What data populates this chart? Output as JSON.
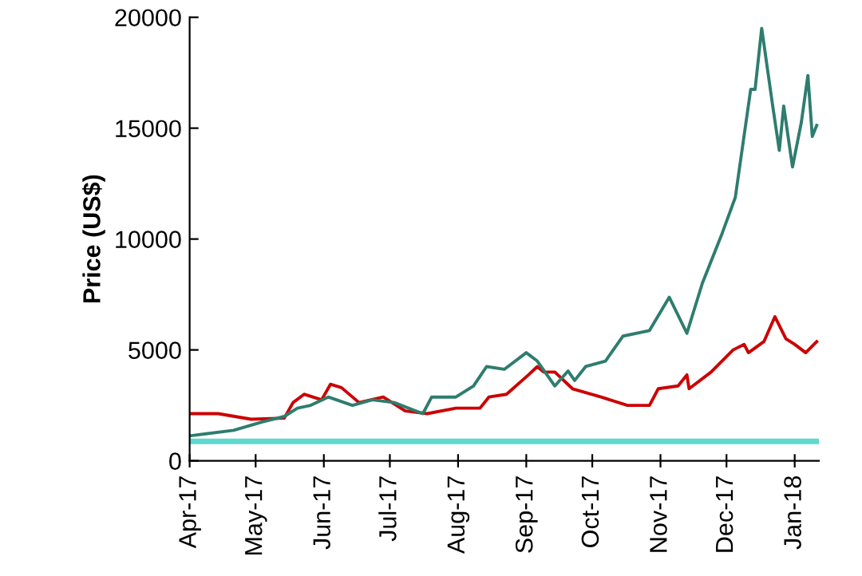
{
  "chart_data": {
    "type": "line",
    "ylabel": "Price (US$)",
    "xlim": [
      "2017-04-01",
      "2018-01-12"
    ],
    "ylim": [
      0,
      20000
    ],
    "yticks": [
      0,
      5000,
      10000,
      15000,
      20000
    ],
    "xticks": [
      {
        "value": "2017-04-01",
        "label": "Apr-17"
      },
      {
        "value": "2017-05-01",
        "label": "May-17"
      },
      {
        "value": "2017-06-01",
        "label": "Jun-17"
      },
      {
        "value": "2017-07-01",
        "label": "Jul-17"
      },
      {
        "value": "2017-08-01",
        "label": "Aug-17"
      },
      {
        "value": "2017-09-01",
        "label": "Sep-17"
      },
      {
        "value": "2017-10-01",
        "label": "Oct-17"
      },
      {
        "value": "2017-11-01",
        "label": "Nov-17"
      },
      {
        "value": "2017-12-01",
        "label": "Dec-17"
      },
      {
        "value": "2018-01-01",
        "label": "Jan-18"
      }
    ],
    "grid": false,
    "legend": false,
    "marker": "none",
    "line_style": "solid",
    "series": [
      {
        "color": "#5fd8d0",
        "x": [
          "2017-04-01",
          "2018-01-11"
        ],
        "values": [
          875,
          875
        ]
      },
      {
        "color": "#cc0000",
        "x": [
          "2017-04-01",
          "2017-04-14",
          "2017-04-29",
          "2017-05-14",
          "2017-05-18",
          "2017-05-23",
          "2017-05-31",
          "2017-06-04",
          "2017-06-09",
          "2017-06-17",
          "2017-06-28",
          "2017-07-08",
          "2017-07-18",
          "2017-07-31",
          "2017-08-11",
          "2017-08-15",
          "2017-08-23",
          "2017-09-02",
          "2017-09-06",
          "2017-09-09",
          "2017-09-14",
          "2017-09-22",
          "2017-10-05",
          "2017-10-17",
          "2017-10-27",
          "2017-10-31",
          "2017-11-09",
          "2017-11-13",
          "2017-11-14",
          "2017-11-24",
          "2017-12-04",
          "2017-12-09",
          "2017-12-11",
          "2017-12-18",
          "2017-12-23",
          "2017-12-28",
          "2018-01-01",
          "2018-01-06",
          "2018-01-11"
        ],
        "values": [
          2125,
          2125,
          1875,
          1925,
          2625,
          3000,
          2750,
          3450,
          3300,
          2625,
          2875,
          2250,
          2125,
          2375,
          2375,
          2875,
          3000,
          3875,
          4250,
          4000,
          4000,
          3250,
          2875,
          2500,
          2500,
          3250,
          3375,
          3875,
          3250,
          4000,
          5000,
          5250,
          4875,
          5375,
          6500,
          5500,
          5250,
          4875,
          5375
        ]
      },
      {
        "color": "#2e7d6e",
        "x": [
          "2017-04-01",
          "2017-04-21",
          "2017-05-04",
          "2017-05-14",
          "2017-05-20",
          "2017-05-26",
          "2017-06-03",
          "2017-06-14",
          "2017-06-23",
          "2017-07-03",
          "2017-07-16",
          "2017-07-20",
          "2017-07-31",
          "2017-08-08",
          "2017-08-14",
          "2017-08-22",
          "2017-09-01",
          "2017-09-06",
          "2017-09-14",
          "2017-09-20",
          "2017-09-23",
          "2017-09-28",
          "2017-10-07",
          "2017-10-15",
          "2017-10-27",
          "2017-11-05",
          "2017-11-13",
          "2017-11-20",
          "2017-11-29",
          "2017-12-05",
          "2017-12-12",
          "2017-12-14",
          "2017-12-17",
          "2017-12-22",
          "2017-12-25",
          "2017-12-27",
          "2017-12-31",
          "2018-01-04",
          "2018-01-07",
          "2018-01-09",
          "2018-01-11"
        ],
        "values": [
          1125,
          1375,
          1750,
          2000,
          2375,
          2500,
          2875,
          2500,
          2750,
          2625,
          2125,
          2875,
          2875,
          3375,
          4250,
          4125,
          4875,
          4500,
          3375,
          4050,
          3625,
          4250,
          4500,
          5625,
          5875,
          7375,
          5750,
          8000,
          10250,
          11875,
          16750,
          16750,
          19500,
          16000,
          14000,
          16000,
          13250,
          15250,
          17375,
          14625,
          15125
        ]
      }
    ]
  }
}
